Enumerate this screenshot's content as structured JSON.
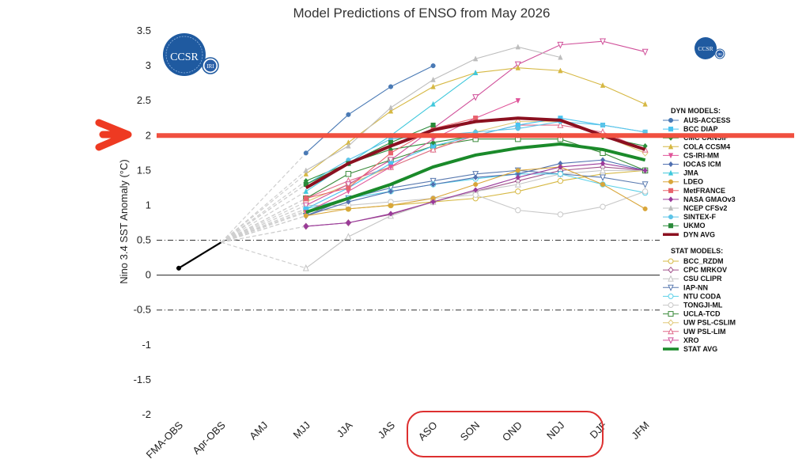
{
  "chart_data": {
    "type": "line",
    "title": "Model Predictions of ENSO from May 2026",
    "ylabel": "Nino 3.4 SST Anomaly (°C)",
    "xlabel": "",
    "ylim": [
      -2,
      3.5
    ],
    "yticks": [
      "3.5",
      "3",
      "2.5",
      "2",
      "1.5",
      "1",
      "0.5",
      "0",
      "-0.5",
      "-1",
      "-1.5",
      "-2"
    ],
    "categories": [
      "FMA-OBS",
      "Apr-OBS",
      "AMJ",
      "MJJ",
      "JJA",
      "JAS",
      "ASO",
      "SON",
      "OND",
      "NDJ",
      "DJF",
      "JFM"
    ],
    "reference_lines": [
      0.5,
      -0.5
    ],
    "highlight_line": 2,
    "observed": {
      "x": [
        "FMA-OBS",
        "Apr-OBS"
      ],
      "values": [
        0.1,
        0.47
      ]
    },
    "dyn_header": "DYN MODELS:",
    "stat_header": "STAT MODELS:",
    "dyn_series": [
      {
        "name": "AUS-ACCESS",
        "color": "#4a7ab5",
        "marker": "circle",
        "values": [
          1.75,
          2.3,
          2.7,
          3.0
        ]
      },
      {
        "name": "BCC DIAP",
        "color": "#49c3f0",
        "marker": "square",
        "values": [
          0.95,
          1.25,
          1.6,
          1.85,
          2.0,
          2.15,
          2.25,
          2.15,
          2.05
        ]
      },
      {
        "name": "CMC CANSIP",
        "color": "#2a8f3a",
        "marker": "diamond",
        "values": [
          1.35,
          1.6,
          1.8,
          1.9,
          2.0,
          2.0,
          2.0,
          1.98,
          1.85
        ]
      },
      {
        "name": "COLA CCSM4",
        "color": "#d6b843",
        "marker": "triangle",
        "values": [
          1.45,
          1.9,
          2.35,
          2.7,
          2.9,
          2.97,
          2.93,
          2.72,
          2.45
        ]
      },
      {
        "name": "CS-IRI-MM",
        "color": "#e0559a",
        "marker": "triangle-down",
        "values": [
          0.9,
          1.2,
          1.55,
          1.95,
          2.25,
          2.5
        ]
      },
      {
        "name": "IOCAS ICM",
        "color": "#5070b0",
        "marker": "diamond",
        "values": [
          0.85,
          1.05,
          1.2,
          1.3,
          1.4,
          1.45,
          1.6,
          1.65,
          1.5
        ]
      },
      {
        "name": "JMA",
        "color": "#40c8dc",
        "marker": "triangle",
        "values": [
          1.2,
          1.6,
          2.0,
          2.45,
          2.9
        ]
      },
      {
        "name": "LDEO",
        "color": "#d9a63a",
        "marker": "circle",
        "values": [
          0.85,
          0.95,
          1.0,
          1.1,
          1.3,
          1.5,
          1.55,
          1.3,
          0.95
        ]
      },
      {
        "name": "MetFRANCE",
        "color": "#e8626c",
        "marker": "square",
        "values": [
          1.1,
          1.25,
          1.75,
          2.1,
          2.25
        ]
      },
      {
        "name": "NASA GMAOv3",
        "color": "#9a3a9a",
        "marker": "diamond",
        "values": [
          0.7,
          0.75,
          0.88,
          1.05,
          1.22,
          1.4,
          1.55,
          1.6,
          1.5
        ]
      },
      {
        "name": "NCEP CFSv2",
        "color": "#bdbdbd",
        "marker": "triangle",
        "values": [
          1.5,
          1.85,
          2.4,
          2.8,
          3.1,
          3.27,
          3.12
        ]
      },
      {
        "name": "SINTEX-F",
        "color": "#5cc4e8",
        "marker": "circle",
        "values": [
          1.3,
          1.65,
          1.95,
          2.0,
          2.05,
          2.1,
          2.2,
          2.15,
          2.05
        ]
      },
      {
        "name": "UKMO",
        "color": "#2a8a3a",
        "marker": "square",
        "values": [
          1.3,
          1.6,
          1.9,
          2.15
        ]
      },
      {
        "name": "DYN AVG",
        "color": "#8b1020",
        "marker": "none",
        "bold": true,
        "values": [
          1.25,
          1.6,
          1.85,
          2.08,
          2.2,
          2.25,
          2.22,
          2.0,
          1.8
        ]
      }
    ],
    "stat_series": [
      {
        "name": "BCC_RZDM",
        "color": "#d6b843",
        "marker": "circle",
        "values": [
          0.92,
          0.95,
          1.0,
          1.05,
          1.1,
          1.2,
          1.35,
          1.45,
          1.5
        ]
      },
      {
        "name": "CPC MRKOV",
        "color": "#a0508a",
        "marker": "diamond",
        "values": [
          0.7,
          0.75,
          0.87,
          1.05,
          1.2,
          1.35,
          1.5,
          1.55,
          1.5
        ]
      },
      {
        "name": "CSU CLIPR",
        "color": "#c4c4c4",
        "marker": "triangle",
        "values": [
          0.1,
          0.55,
          0.85,
          1.05,
          1.2,
          1.3,
          1.45,
          1.5,
          1.5
        ]
      },
      {
        "name": "IAP-NN",
        "color": "#5a7ab0",
        "marker": "triangle-down",
        "values": [
          0.85,
          1.1,
          1.25,
          1.35,
          1.45,
          1.5,
          1.45,
          1.4,
          1.3
        ]
      },
      {
        "name": "NTU CODA",
        "color": "#5ad0e8",
        "marker": "circle",
        "values": [
          0.95,
          1.1,
          1.2,
          1.3,
          1.38,
          1.45,
          1.45,
          1.3,
          1.18
        ]
      },
      {
        "name": "TONGJI-ML",
        "color": "#c8c8c8",
        "marker": "circle",
        "values": [
          1.0,
          1.0,
          1.05,
          1.1,
          1.15,
          0.93,
          0.87,
          0.98,
          1.2
        ]
      },
      {
        "name": "UCLA-TCD",
        "color": "#3a8a3a",
        "marker": "square",
        "values": [
          1.1,
          1.45,
          1.65,
          1.85,
          1.95,
          1.95,
          1.95,
          1.75,
          1.5
        ]
      },
      {
        "name": "UW PSL-CSLIM",
        "color": "#e0c878",
        "marker": "diamond",
        "values": [
          1.05,
          1.3,
          1.55,
          1.8,
          2.05,
          2.2,
          2.2,
          2.0,
          1.75
        ]
      },
      {
        "name": "UW PSL-LIM",
        "color": "#e06a8a",
        "marker": "triangle",
        "values": [
          1.1,
          1.35,
          1.55,
          1.8,
          2.0,
          2.15,
          2.15,
          2.05,
          1.8
        ]
      },
      {
        "name": "XRO",
        "color": "#d0509a",
        "marker": "triangle-down",
        "values": [
          1.0,
          1.3,
          1.65,
          2.1,
          2.55,
          3.02,
          3.3,
          3.35,
          3.2
        ]
      },
      {
        "name": "STAT AVG",
        "color": "#1a8a2a",
        "marker": "none",
        "bold": true,
        "values": [
          0.9,
          1.1,
          1.3,
          1.55,
          1.72,
          1.82,
          1.88,
          1.8,
          1.65
        ]
      }
    ]
  },
  "logos": {
    "main": "CCSR",
    "sub": "IRI"
  },
  "annotations": {
    "arrow_color": "#ee3a22",
    "line_color": "#f05040",
    "box_color": "#dd3030"
  }
}
